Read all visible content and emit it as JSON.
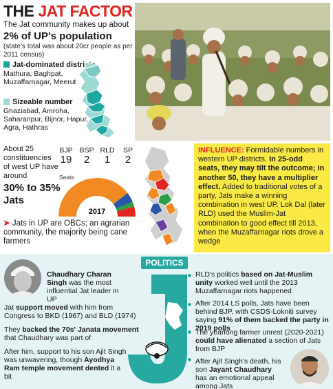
{
  "title": {
    "the": "THE ",
    "jat_factor": "JAT FACTOR"
  },
  "intro": "The Jat community makes up about",
  "population": "2% of UP's population",
  "census_note": "(state's total was about 20cr people as per 2011 census)",
  "legend": {
    "jat_dominated_heading": "Jat-dominated districts",
    "jat_dominated_list": "Mathura, Baghpat, Muzaffarnagar, Meerut",
    "sizeable_heading": "Sizeable number",
    "sizeable_list": "Ghaziabad, Amroha, Saharanpur, Bijnor, Hapur, Agra, Hathras",
    "dark_color": "#1fa6a0",
    "light_color": "#9fd9d4"
  },
  "constituencies": {
    "text": "About 25 constituencies of west UP have around",
    "big": "30% to 35% Jats",
    "seats_label": "Seats",
    "year": "2017"
  },
  "chart_data": {
    "type": "pie",
    "title": "",
    "categories": [
      "BJP",
      "BSP",
      "RLD",
      "SP"
    ],
    "values": [
      19,
      2,
      1,
      2
    ],
    "colors": [
      "#f28a24",
      "#2b56a8",
      "#2e9e46",
      "#e0261f"
    ],
    "center_label": "2017"
  },
  "obc_note": "Jats in UP are OBCs; an agrarian community, the majority being cane farmers",
  "influence": {
    "heading": "INFLUENCE:",
    "p1": " Formidable numbers in western UP districts. ",
    "p1b": "In 25-odd seats, they may tilt the outcome; in another 50, they have a multiplier effect.",
    "p2": " Added to traditional votes of a party, Jats make a winning combination in west UP. Lok Dal (later RLD) used the Muslim-Jat combination to good effect till 2013, when the Muzaffarnagar riots drove a wedge"
  },
  "politics": {
    "badge": "POLITICS",
    "charan_name": "Chaudhary Charan Singh",
    "charan_desc": " was the most influential Jat leader in UP",
    "support_a": "Jat ",
    "support_b": "support moved",
    "support_c": " with him from Congress to BKD (1967) and BLD (1974)",
    "janata_a": "They ",
    "janata_b": "backed the 70s' Janata movement",
    "janata_c": " that Chaudhary was part of",
    "ajit_a": "After him, support to his son Ajit Singh was unwavering, though ",
    "ajit_b": "Ayodhya Ram temple movement dented",
    "ajit_c": " it a bit",
    "rld_a": "RLD's politics ",
    "rld_b": "based on Jat-Muslim unity",
    "rld_c": " worked well until the 2013 Muzaffarnagar riots happened",
    "ls_a": "After 2014 LS polls, Jats have been behind BJP, with CSDS-Lokniti survey saying ",
    "ls_b": "91% of them backed the party in 2019 polls",
    "farmer_a": "The yearlong farmer unrest (2020-2021) ",
    "farmer_b": "could have alienated",
    "farmer_c": " a section of Jats from BJP",
    "jayant_a": "After Ajit Singh's death, his son ",
    "jayant_b": "Jayant Chaudhary",
    "jayant_c": " has an emotional appeal among Jats"
  },
  "colors": {
    "accent_red": "#e0261f",
    "teal": "#27a9a1",
    "yellow": "#fbe945"
  }
}
